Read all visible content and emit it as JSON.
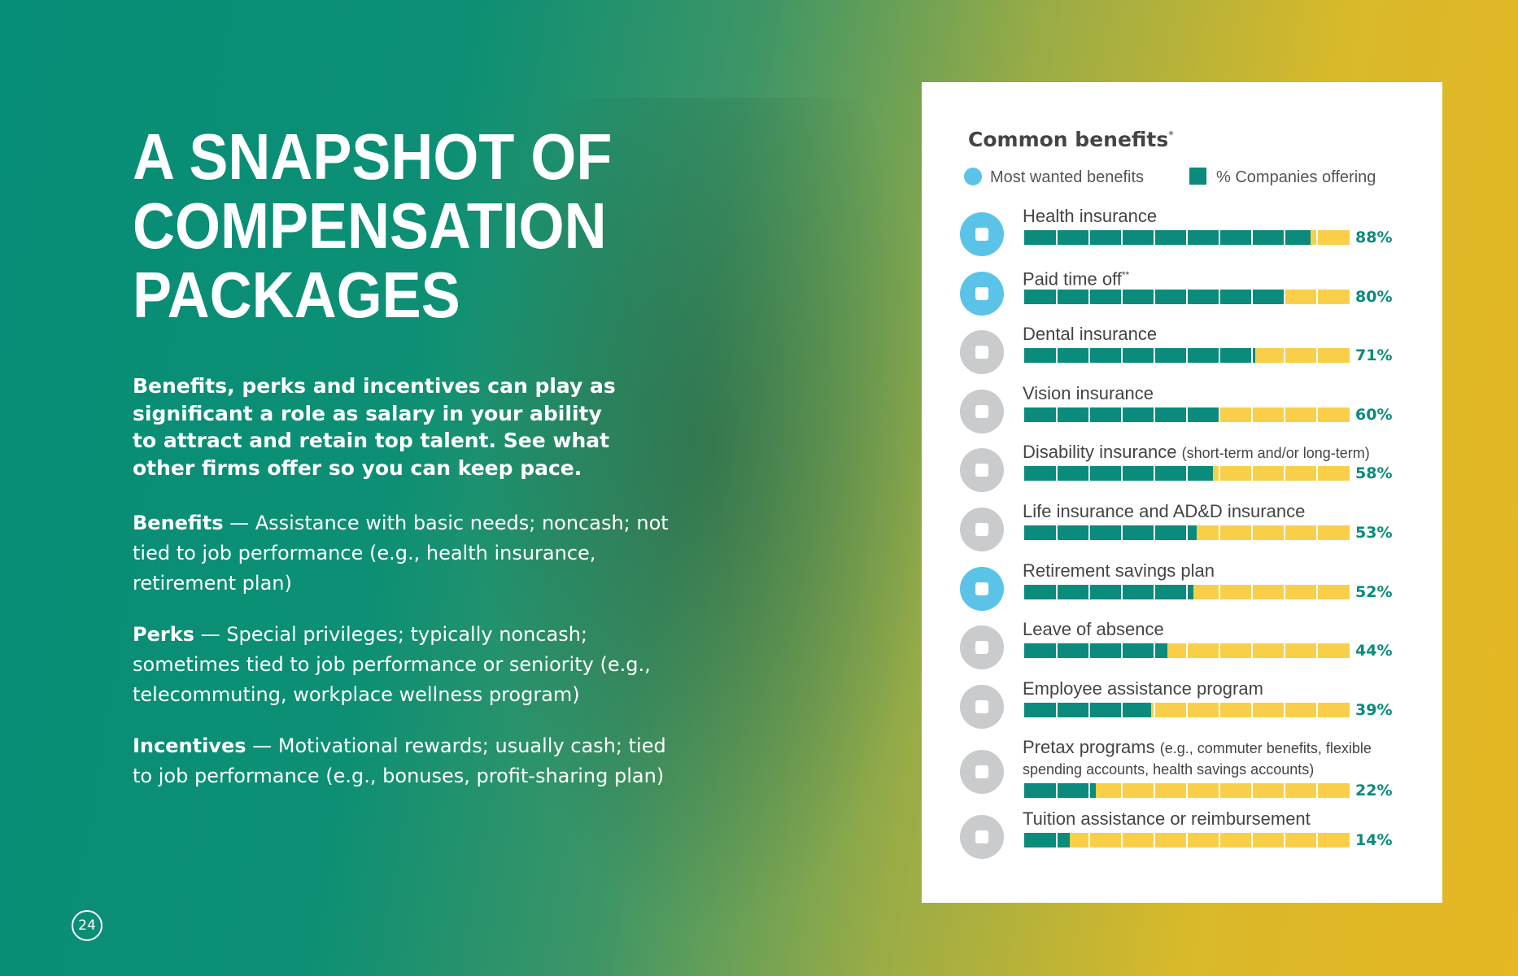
{
  "page": {
    "title_lines": [
      "A SNAPSHOT OF",
      "COMPENSATION",
      "PACKAGES"
    ],
    "intro": "Benefits, perks and incentives can play as significant a role as salary in your ability to attract and retain top talent. See what other firms offer so you can keep pace.",
    "definitions": [
      {
        "term": "Benefits",
        "text": "— Assistance with basic needs; noncash; not tied to job performance (e.g., health insurance, retirement plan)"
      },
      {
        "term": "Perks",
        "text": "— Special privileges; typically noncash; sometimes tied to job performance or seniority (e.g., telecommuting, workplace wellness program)"
      },
      {
        "term": "Incentives",
        "text": "— Motivational rewards; usually cash; tied to job performance (e.g., bonuses, profit-sharing plan)"
      }
    ],
    "page_number": 24
  },
  "chart_data": {
    "type": "bar",
    "orientation": "horizontal",
    "title": "Common benefits",
    "title_mark": "*",
    "categories": [
      "Health insurance",
      "Paid time off",
      "Dental insurance",
      "Vision insurance",
      "Disability insurance",
      "Life insurance and AD&D insurance",
      "Retirement savings plan",
      "Leave of absence",
      "Employee assistance program",
      "Pretax programs",
      "Tuition assistance or reimbursement"
    ],
    "category_notes": [
      null,
      "**",
      null,
      null,
      "(short-term and/or long-term)",
      null,
      null,
      null,
      null,
      "(e.g., commuter benefits, flexible spending accounts, health savings accounts)",
      null
    ],
    "highlight": {
      "name": "Most wanted benefits",
      "color": "#5cc3e8",
      "flags": [
        true,
        true,
        false,
        false,
        false,
        false,
        true,
        false,
        false,
        false,
        false
      ],
      "other_color": "#c9cbcd"
    },
    "series": [
      {
        "name": "% Companies offering",
        "color": "#0a8b7b",
        "track_color": "#f9cf4a",
        "values": [
          88,
          80,
          71,
          60,
          58,
          53,
          52,
          44,
          39,
          22,
          14
        ],
        "value_labels": [
          "88%",
          "80%",
          "71%",
          "60%",
          "58%",
          "53%",
          "52%",
          "44%",
          "39%",
          "22%",
          "14%"
        ]
      }
    ],
    "xlim": [
      0,
      100
    ],
    "xticks": [
      0,
      10,
      20,
      30,
      40,
      50,
      60,
      70,
      80,
      90,
      100
    ]
  }
}
